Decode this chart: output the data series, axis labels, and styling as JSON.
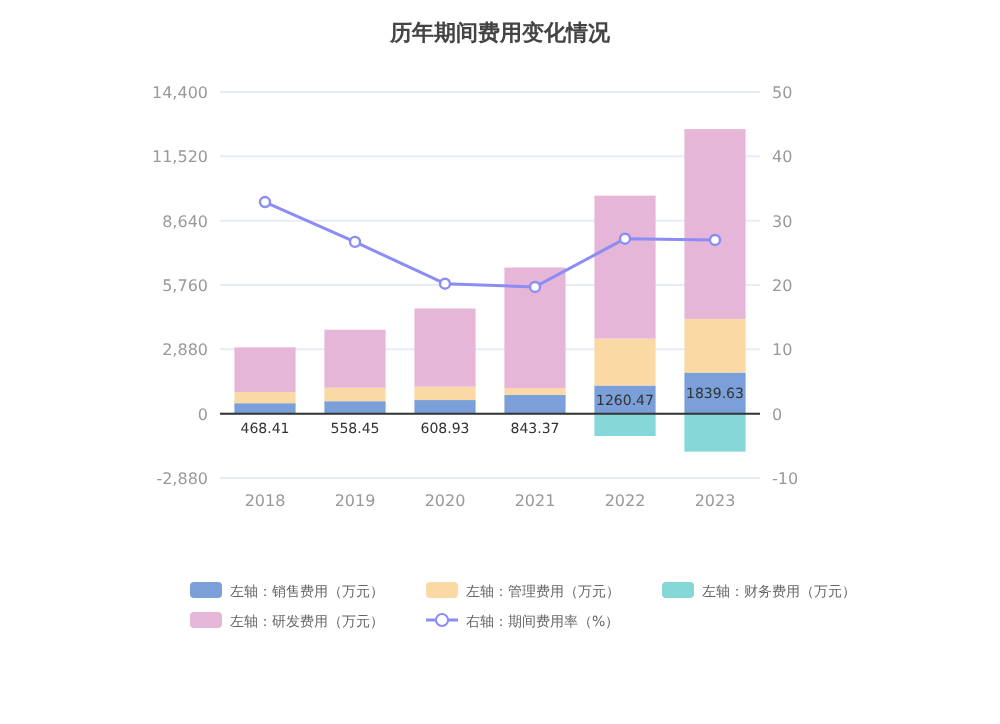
{
  "chart_data": {
    "type": "bar",
    "title": "历年期间费用变化情况",
    "categories": [
      "2018",
      "2019",
      "2020",
      "2021",
      "2022",
      "2023"
    ],
    "stacked": true,
    "series": [
      {
        "name": "左轴：销售费用（万元）",
        "color": "#7b9fd8",
        "values": [
          468.41,
          558.45,
          608.93,
          843.37,
          1260.47,
          1839.63
        ],
        "value_labels": [
          "468.41",
          "558.45",
          "608.93",
          "843.37",
          "1260.47",
          "1839.63"
        ]
      },
      {
        "name": "左轴：管理费用（万元）",
        "color": "#fbd9a4",
        "values": [
          500,
          600,
          600,
          300,
          2100,
          2400
        ]
      },
      {
        "name": "左轴：财务费用（万元）",
        "color": "#86d8d8",
        "values": [
          0,
          0,
          0,
          0,
          -1000,
          -1700
        ]
      },
      {
        "name": "左轴：研发费用（万元）",
        "color": "#e6b6d8",
        "values": [
          2000,
          2600,
          3500,
          5400,
          6400,
          8500
        ]
      },
      {
        "name": "右轴：期间费用率（%）",
        "type": "line",
        "axis": "y2",
        "color": "#8c8cf5",
        "values": [
          32.9,
          26.7,
          20.2,
          19.7,
          27.2,
          27.0
        ]
      }
    ],
    "ylim": [
      -2880,
      14400
    ],
    "yticks": [
      {
        "value": -2880,
        "label": "-2,880"
      },
      0,
      {
        "value": 2880,
        "label": "2,880"
      },
      {
        "value": 5760,
        "label": "5,760"
      },
      {
        "value": 8640,
        "label": "8,640"
      },
      {
        "value": 11520,
        "label": "11,520"
      },
      {
        "value": 14400,
        "label": "14,400"
      }
    ],
    "y2lim": [
      -10,
      50
    ],
    "y2ticks": [
      -10,
      0,
      10,
      20,
      30,
      40,
      50
    ],
    "grid": "y",
    "legend": "bottom",
    "marker": "circle",
    "line_style": "solid"
  }
}
